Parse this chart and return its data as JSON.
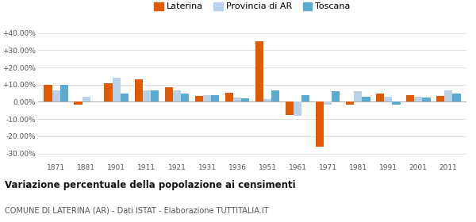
{
  "years": [
    1871,
    1881,
    1901,
    1911,
    1921,
    1931,
    1936,
    1951,
    1961,
    1971,
    1981,
    1991,
    2001,
    2011
  ],
  "laterina": [
    10.0,
    -1.5,
    11.0,
    13.0,
    8.5,
    3.5,
    5.5,
    35.0,
    -7.5,
    -26.0,
    -1.5,
    5.0,
    4.0,
    3.5
  ],
  "provincia_ar": [
    6.5,
    3.0,
    14.0,
    6.5,
    6.5,
    4.0,
    2.5,
    1.5,
    -8.0,
    -1.5,
    6.0,
    3.0,
    3.0,
    6.5
  ],
  "toscana": [
    10.0,
    0.0,
    5.0,
    6.5,
    5.0,
    4.0,
    2.0,
    6.5,
    4.0,
    6.0,
    3.0,
    -1.5,
    2.5,
    5.0
  ],
  "color_laterina": "#E05A00",
  "color_provincia": "#B8D0E8",
  "color_toscana": "#5BAAD0",
  "ylim": [
    -35,
    45
  ],
  "yticks": [
    -30,
    -20,
    -10,
    0,
    10,
    20,
    30,
    40
  ],
  "ytick_labels": [
    "-30.00%",
    "-20.00%",
    "-10.00%",
    "0.00%",
    "+10.00%",
    "+20.00%",
    "+30.00%",
    "+40.00%"
  ],
  "title": "Variazione percentuale della popolazione ai censimenti",
  "subtitle": "COMUNE DI LATERINA (AR) - Dati ISTAT - Elaborazione TUTTITALIA.IT",
  "legend_labels": [
    "Laterina",
    "Provincia di AR",
    "Toscana"
  ],
  "background_color": "#ffffff",
  "grid_color": "#dddddd"
}
